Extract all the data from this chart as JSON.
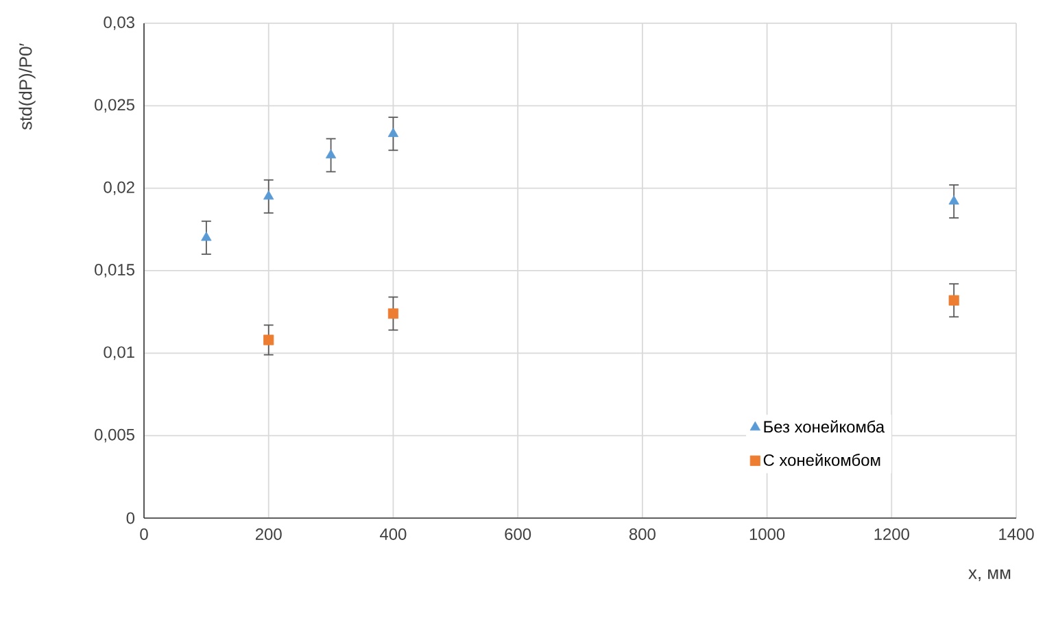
{
  "chart_data": {
    "type": "scatter",
    "xlabel": "x, мм",
    "ylabel": "std(dP)/P0′",
    "series": [
      {
        "name": "Без хонейкомба",
        "color": "#5b9bd5",
        "marker": "triangle",
        "x": [
          100,
          200,
          300,
          400,
          1300
        ],
        "values": [
          0.017,
          0.0195,
          0.022,
          0.0233,
          0.0192
        ],
        "errors": [
          0.001,
          0.001,
          0.001,
          0.001,
          0.001
        ]
      },
      {
        "name": "С хонейкомбом",
        "color": "#ed7d31",
        "marker": "square",
        "x": [
          200,
          400,
          1300
        ],
        "values": [
          0.0108,
          0.0124,
          0.0132
        ],
        "errors": [
          0.0009,
          0.001,
          0.001
        ]
      }
    ],
    "xlim": [
      0,
      1400
    ],
    "xticks": [
      0,
      200,
      400,
      600,
      800,
      1000,
      1200,
      1400
    ],
    "ylim": [
      0,
      0.03
    ],
    "yticks": [
      0,
      {
        "value": 0.005,
        "label": "0,005"
      },
      {
        "value": 0.01,
        "label": "0,01"
      },
      {
        "value": 0.015,
        "label": "0,015"
      },
      {
        "value": 0.02,
        "label": "0,02"
      },
      {
        "value": 0.025,
        "label": "0,025"
      },
      {
        "value": 0.03,
        "label": "0,03"
      }
    ],
    "grid": true,
    "legend": "bottom right"
  }
}
